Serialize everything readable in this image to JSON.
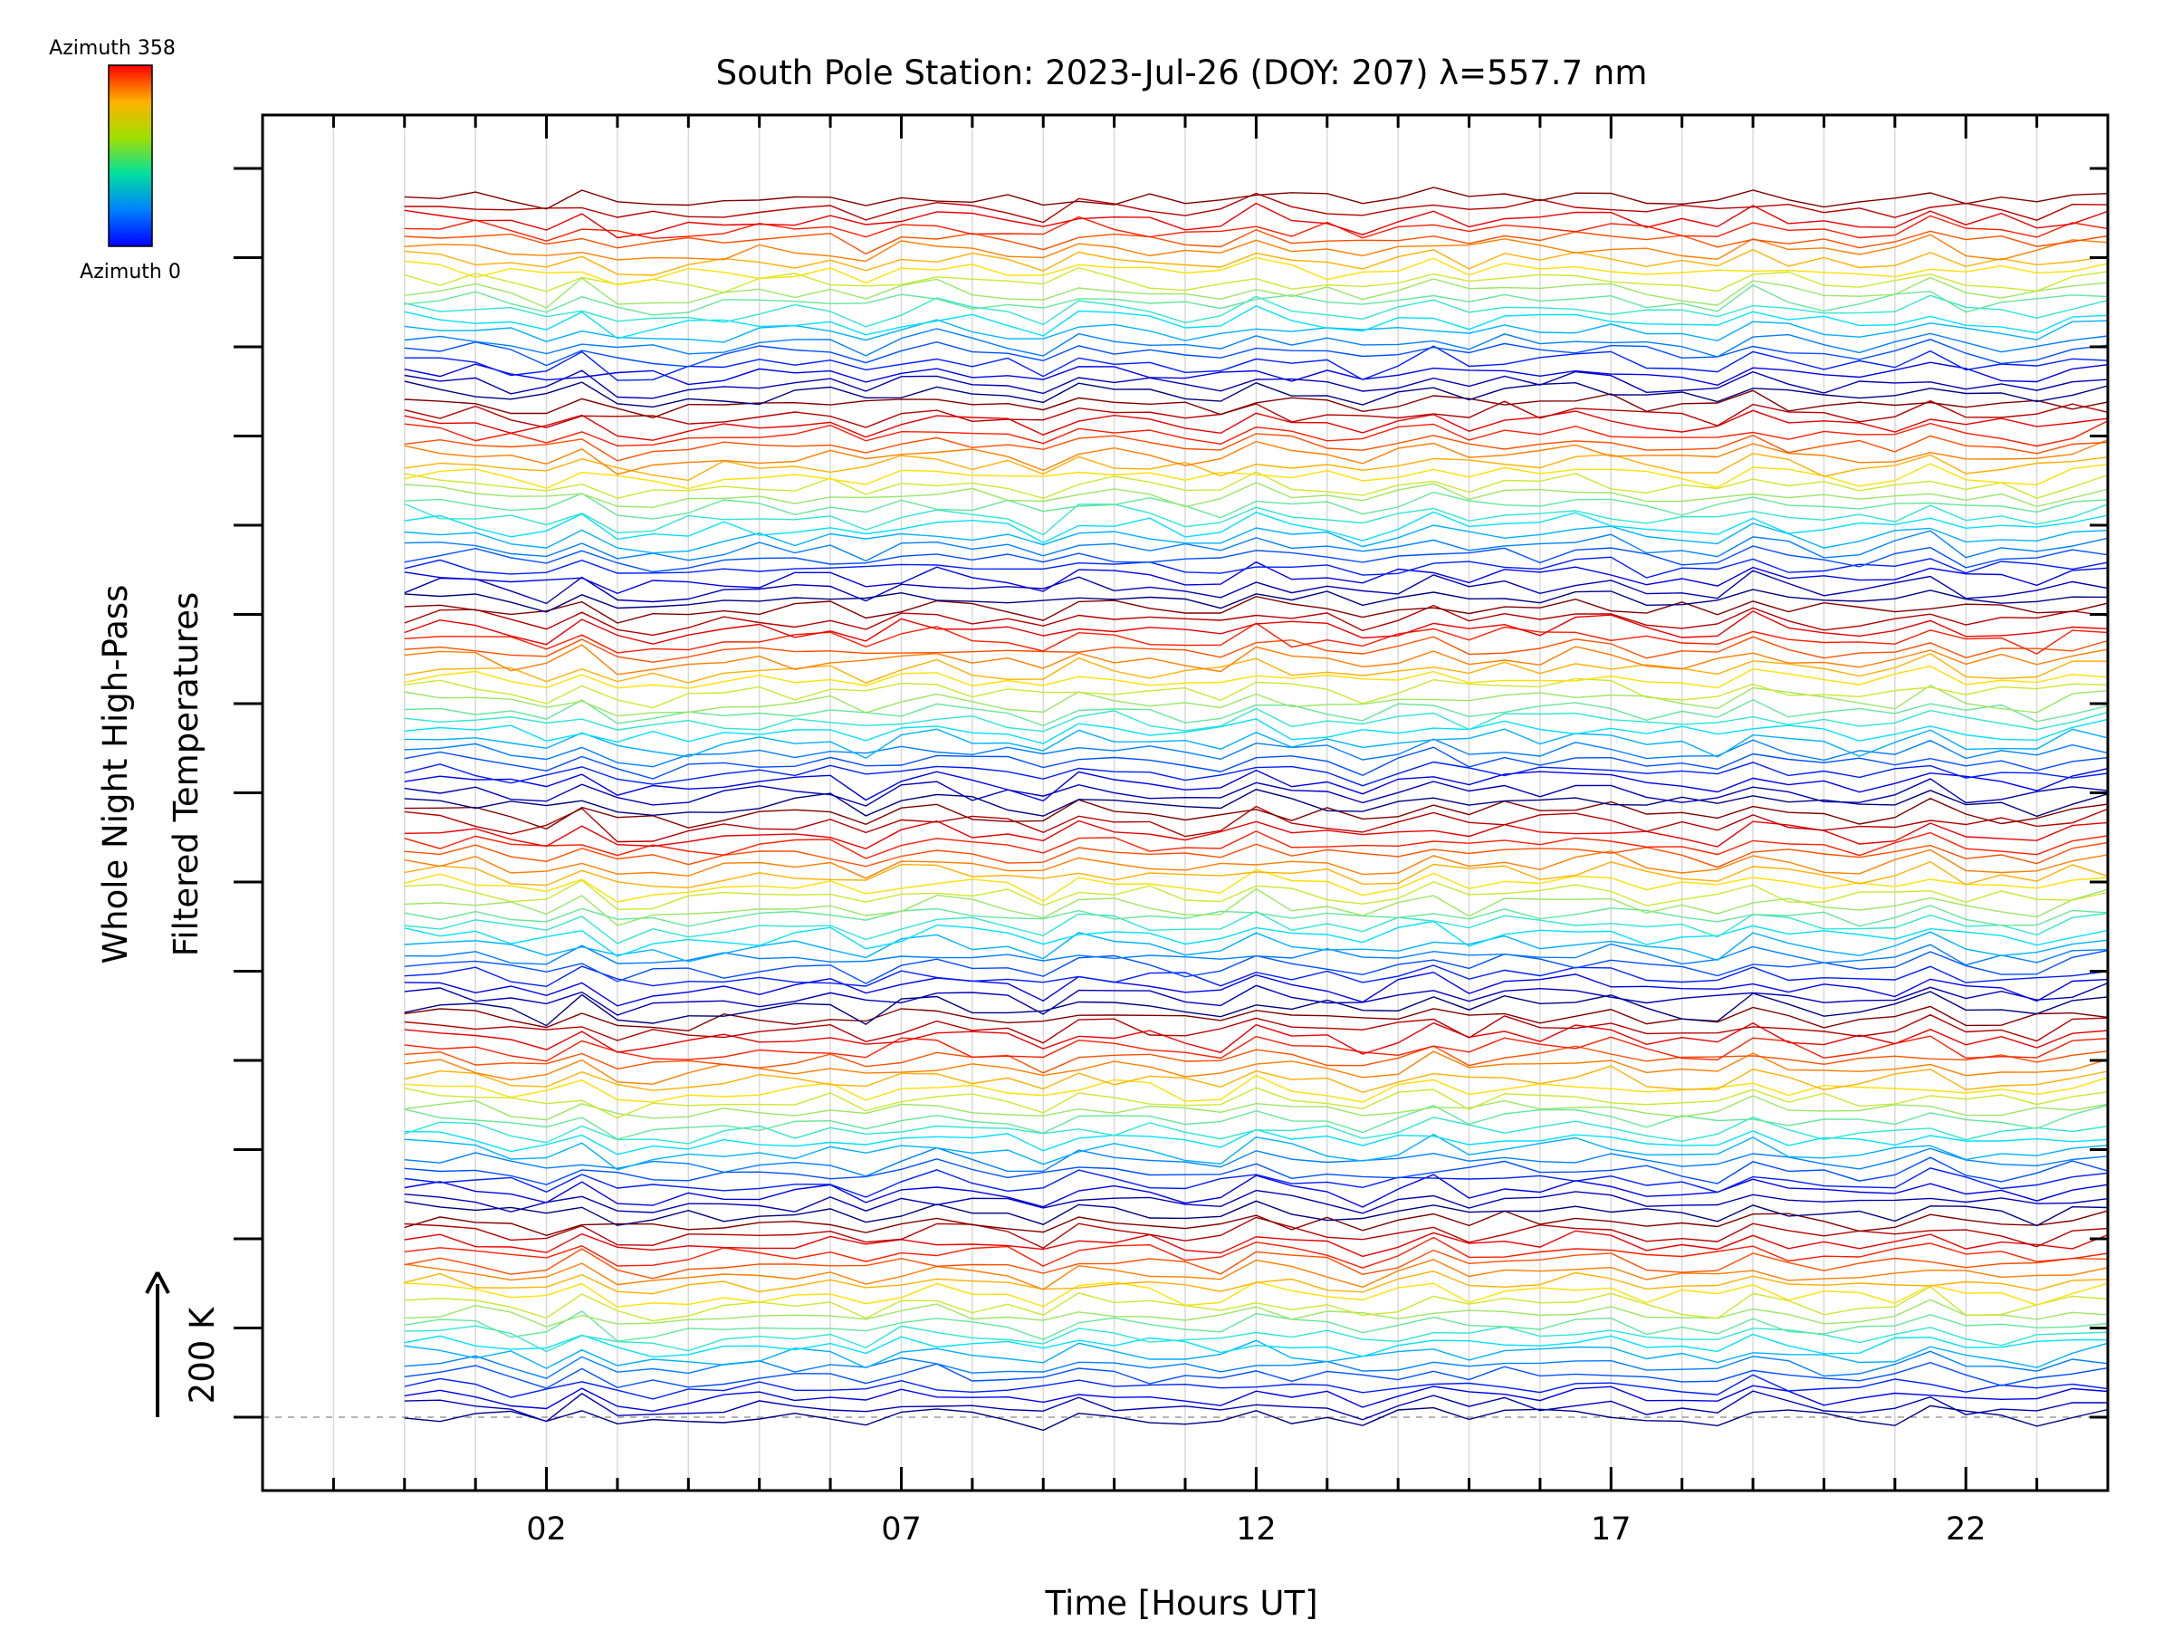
{
  "chart_data": {
    "type": "line",
    "title": "South Pole Station: 2023-Jul-26 (DOY: 207) λ=557.7 nm",
    "xlabel": "Time [Hours UT]",
    "ylabel_line1": "Whole Night High-Pass",
    "ylabel_line2": "Filtered Temperatures",
    "scale_label": "200 K",
    "xlim": [
      -2.0,
      24.0
    ],
    "x_tick_labels": [
      "02",
      "07",
      "12",
      "17",
      "22"
    ],
    "x_tick_values": [
      2,
      7,
      12,
      17,
      22
    ],
    "x_minor_step": 1,
    "data_x_range": [
      0.0,
      23.75
    ],
    "data_step_hours": 0.5,
    "y_major_tick_count": 15,
    "stacked_profiles": 6,
    "series_per_profile": 20,
    "series_offset_K": 25,
    "colorbar": {
      "top_label": "Azimuth 358",
      "bottom_label": "Azimuth 0",
      "colormap": "jet",
      "range": [
        0,
        358
      ]
    },
    "grid": "vertical dotted lines every hour",
    "baseline": "dashed horizontal reference at lowest profile",
    "note": "Each line is the high-pass filtered temperature from one azimuth direction; lines are vertically offset and colored by azimuth. A common dip near 03 UT and a peak near 16 UT appear in all series."
  }
}
